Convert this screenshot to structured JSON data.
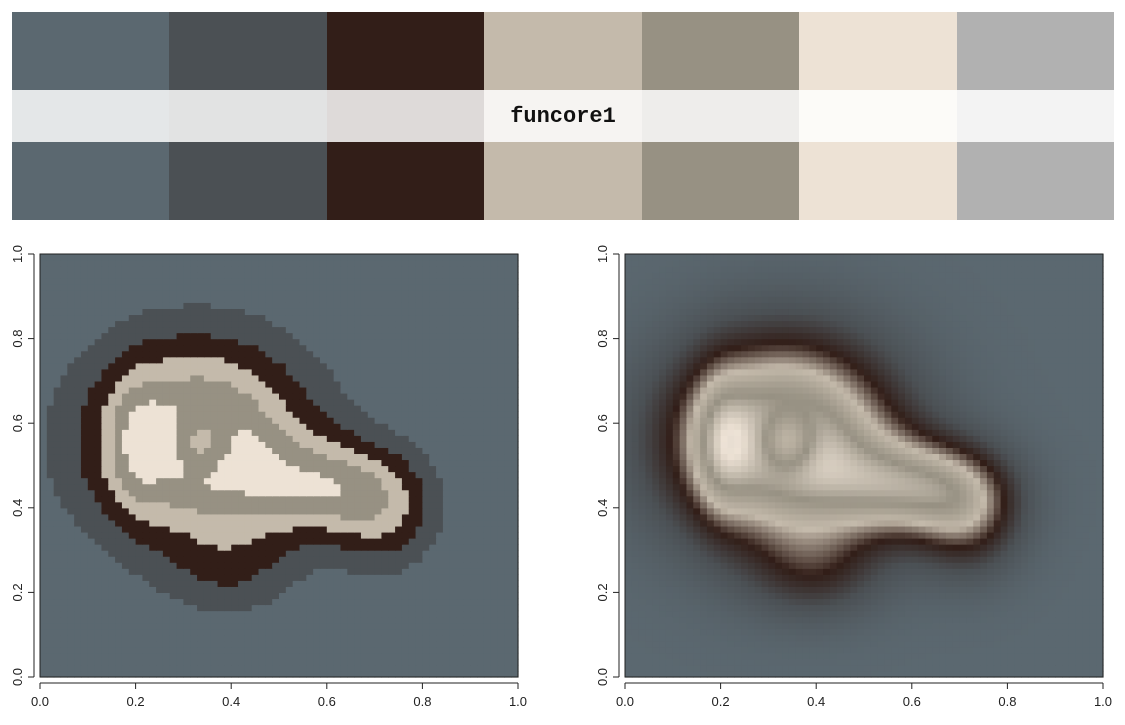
{
  "palette": {
    "name": "funcore1",
    "colors": [
      "#5b6870",
      "#4b5054",
      "#321e18",
      "#c4baab",
      "#979183",
      "#ede2d5",
      "#b1b1b1"
    ]
  },
  "chart_data": [
    {
      "type": "heatmap",
      "style": "discrete",
      "title": "",
      "xlabel": "",
      "ylabel": "",
      "xlim": [
        0,
        1
      ],
      "ylim": [
        0,
        1
      ],
      "xticks": [
        "0.0",
        "0.2",
        "0.4",
        "0.6",
        "0.8",
        "1.0"
      ],
      "yticks": [
        "0.0",
        "0.2",
        "0.4",
        "0.6",
        "0.8",
        "1.0"
      ],
      "colors": [
        "#5b6870",
        "#4b5054",
        "#321e18",
        "#c4baab",
        "#979183",
        "#ede2d5",
        "#b1b1b1"
      ]
    },
    {
      "type": "heatmap",
      "style": "continuous",
      "title": "",
      "xlabel": "",
      "ylabel": "",
      "xlim": [
        0,
        1
      ],
      "ylim": [
        0,
        1
      ],
      "xticks": [
        "0.0",
        "0.2",
        "0.4",
        "0.6",
        "0.8",
        "1.0"
      ],
      "yticks": [
        "0.0",
        "0.2",
        "0.4",
        "0.6",
        "0.8",
        "1.0"
      ],
      "colors": [
        "#5b6870",
        "#4b5054",
        "#321e18",
        "#c4baab",
        "#979183",
        "#ede2d5",
        "#b1b1b1"
      ]
    }
  ]
}
